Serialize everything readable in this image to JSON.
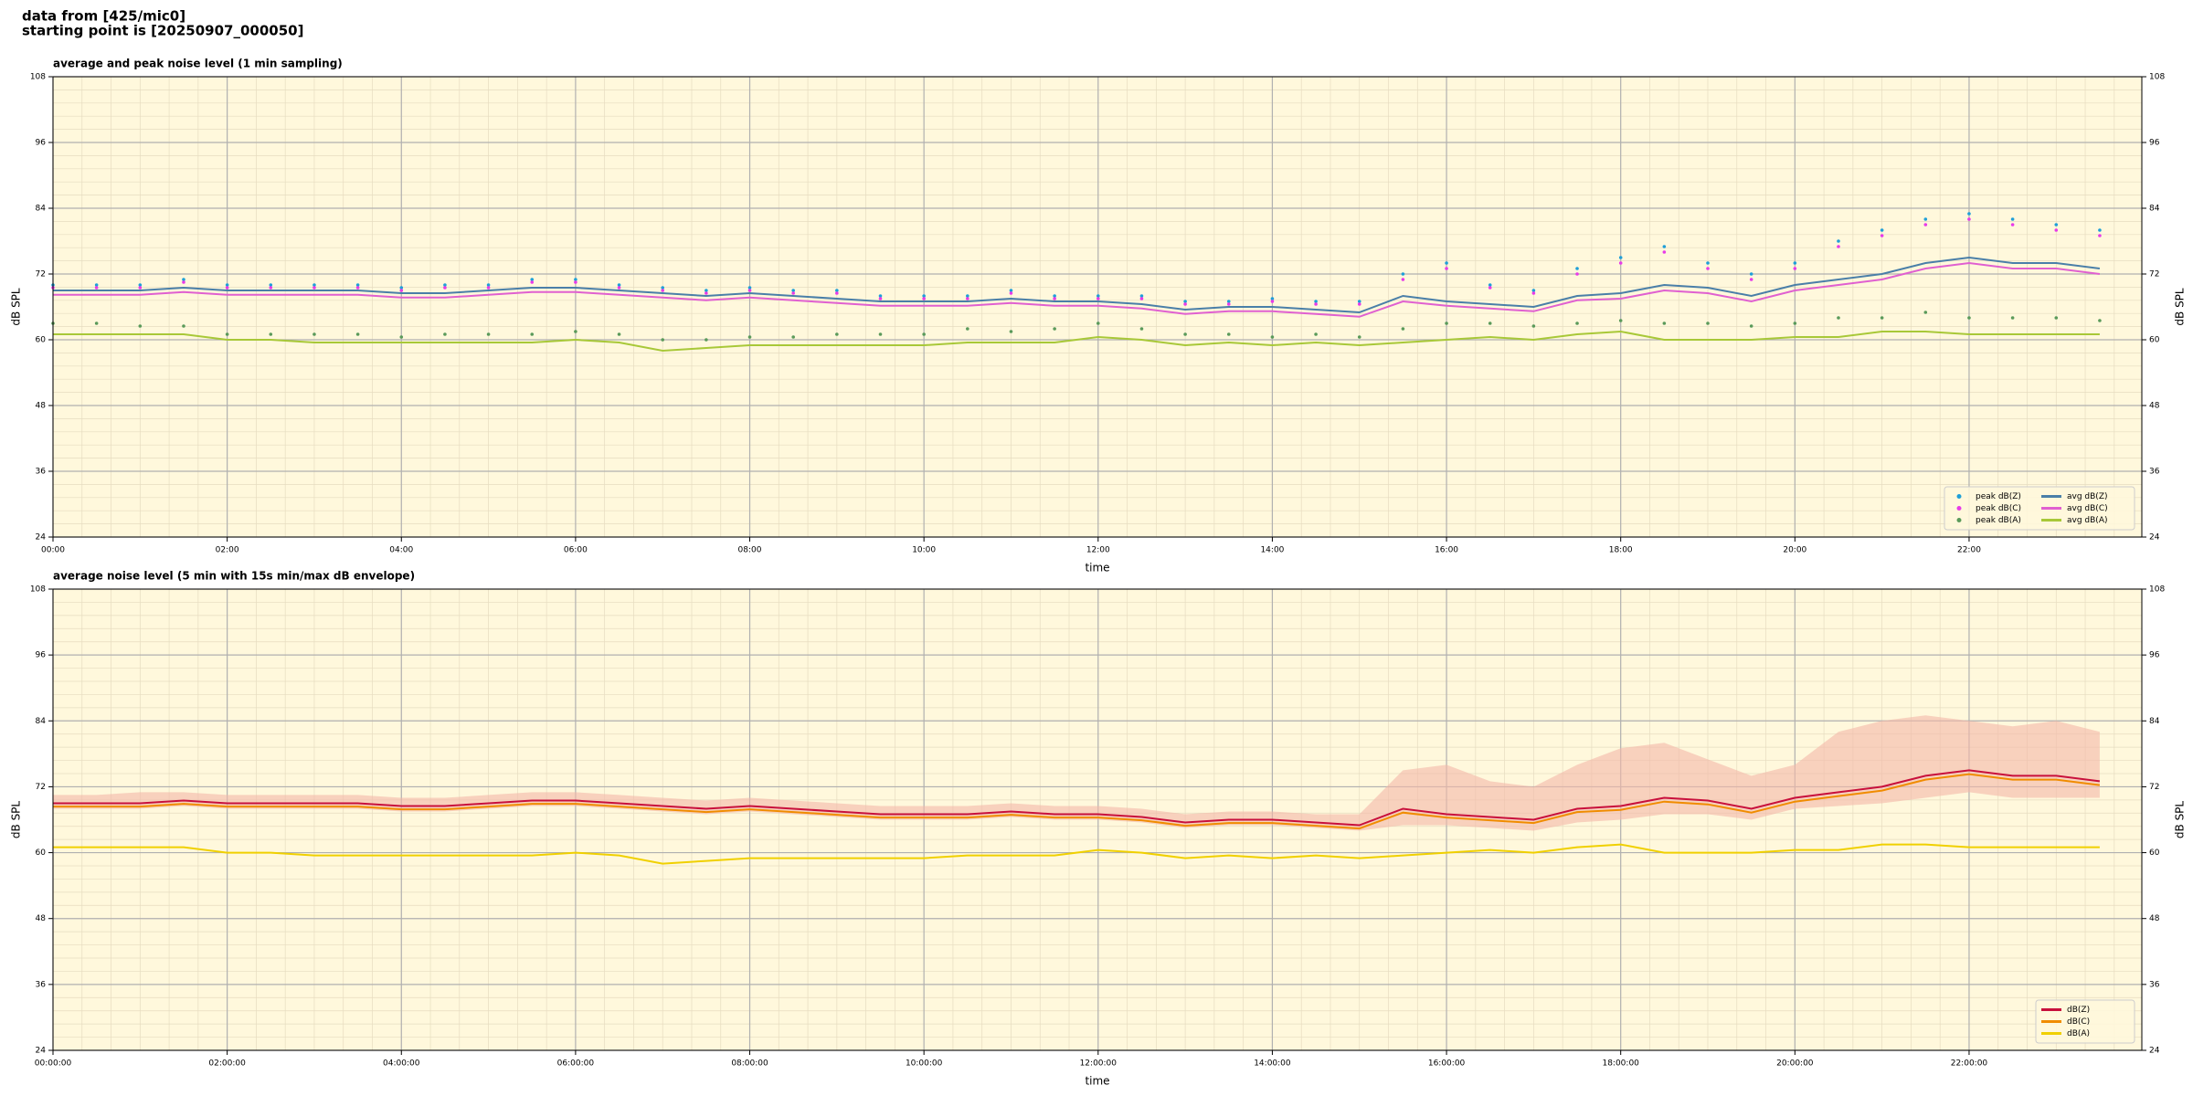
{
  "header": {
    "lines": [
      "data from [425/mic0]",
      "starting point is [20250907_000050]"
    ]
  },
  "chart_data": [
    {
      "type": "line",
      "title": "average and peak noise level (1 min sampling)",
      "xlabel": "time",
      "ylabel": "dB SPL",
      "background": "#fff8dc",
      "grid": true,
      "legend": "lower right",
      "x": [
        "00:00",
        "00:30",
        "01:00",
        "01:30",
        "02:00",
        "02:30",
        "03:00",
        "03:30",
        "04:00",
        "04:30",
        "05:00",
        "05:30",
        "06:00",
        "06:30",
        "07:00",
        "07:30",
        "08:00",
        "08:30",
        "09:00",
        "09:30",
        "10:00",
        "10:30",
        "11:00",
        "11:30",
        "12:00",
        "12:30",
        "13:00",
        "13:30",
        "14:00",
        "14:30",
        "15:00",
        "15:30",
        "16:00",
        "16:30",
        "17:00",
        "17:30",
        "18:00",
        "18:30",
        "19:00",
        "19:30",
        "20:00",
        "20:30",
        "21:00",
        "21:30",
        "22:00",
        "22:30",
        "23:00",
        "23:30"
      ],
      "xlim": [
        "00:00",
        "23:59"
      ],
      "xticks": [
        "00:00",
        "02:00",
        "04:00",
        "06:00",
        "08:00",
        "10:00",
        "12:00",
        "14:00",
        "16:00",
        "18:00",
        "20:00",
        "22:00"
      ],
      "ylim": [
        24,
        108
      ],
      "yticks": [
        24,
        36,
        48,
        60,
        72,
        84,
        96,
        108
      ],
      "series": [
        {
          "name": "peak dB(Z)",
          "type": "scatter",
          "color": "#1f9fd8",
          "values": [
            70,
            70,
            70,
            71,
            70,
            70,
            70,
            70,
            69.5,
            70,
            70,
            71,
            71,
            70,
            69.5,
            69,
            69.5,
            69,
            69,
            68,
            68,
            68,
            69,
            68,
            68,
            68,
            67,
            67,
            67.5,
            67,
            67,
            72,
            74,
            70,
            69,
            73,
            75,
            77,
            74,
            72,
            74,
            78,
            80,
            82,
            83,
            82,
            81,
            80
          ]
        },
        {
          "name": "peak dB(C)",
          "type": "scatter",
          "color": "#e83be8",
          "values": [
            69.5,
            69.5,
            69.5,
            70.5,
            69.5,
            69.5,
            69.5,
            69.5,
            69,
            69.5,
            69.5,
            70.5,
            70.5,
            69.5,
            69,
            68.5,
            69,
            68.5,
            68.5,
            67.5,
            67.5,
            67.5,
            68.5,
            67.5,
            67.5,
            67.5,
            66.5,
            66.5,
            67,
            66.5,
            66.5,
            71,
            73,
            69.5,
            68.5,
            72,
            74,
            76,
            73,
            71,
            73,
            77,
            79,
            81,
            82,
            81,
            80,
            79
          ]
        },
        {
          "name": "peak dB(A)",
          "type": "scatter",
          "color": "#5a9a5a",
          "values": [
            63,
            63,
            62.5,
            62.5,
            61,
            61,
            61,
            61,
            60.5,
            61,
            61,
            61,
            61.5,
            61,
            60,
            60,
            60.5,
            60.5,
            61,
            61,
            61,
            62,
            61.5,
            62,
            63,
            62,
            61,
            61,
            60.5,
            61,
            60.5,
            62,
            63,
            63,
            62.5,
            63,
            63.5,
            63,
            63,
            62.5,
            63,
            64,
            64,
            65,
            64,
            64,
            64,
            63.5
          ]
        },
        {
          "name": "avg dB(Z)",
          "type": "line",
          "color": "#4a7fa8",
          "values": [
            69,
            69,
            69,
            69.5,
            69,
            69,
            69,
            69,
            68.5,
            68.5,
            69,
            69.5,
            69.5,
            69,
            68.5,
            68,
            68.5,
            68,
            67.5,
            67,
            67,
            67,
            67.5,
            67,
            67,
            66.5,
            65.5,
            66,
            66,
            65.5,
            65,
            68,
            67,
            66.5,
            66,
            68,
            68.5,
            70,
            69.5,
            68,
            70,
            71,
            72,
            74,
            75,
            74,
            74,
            73
          ]
        },
        {
          "name": "avg dB(C)",
          "type": "line",
          "color": "#e060d0",
          "values": [
            68.2,
            68.2,
            68.2,
            68.7,
            68.2,
            68.2,
            68.2,
            68.2,
            67.7,
            67.7,
            68.2,
            68.7,
            68.7,
            68.2,
            67.7,
            67.2,
            67.7,
            67.2,
            66.7,
            66.2,
            66.2,
            66.2,
            66.7,
            66.2,
            66.2,
            65.7,
            64.7,
            65.2,
            65.2,
            64.7,
            64.2,
            67,
            66.2,
            65.7,
            65.2,
            67.2,
            67.5,
            69,
            68.5,
            67,
            69,
            70,
            71,
            73,
            74,
            73,
            73,
            72
          ]
        },
        {
          "name": "avg dB(A)",
          "type": "line",
          "color": "#a8c838",
          "values": [
            61,
            61,
            61,
            61,
            60,
            60,
            59.5,
            59.5,
            59.5,
            59.5,
            59.5,
            59.5,
            60,
            59.5,
            58,
            58.5,
            59,
            59,
            59,
            59,
            59,
            59.5,
            59.5,
            59.5,
            60.5,
            60,
            59,
            59.5,
            59,
            59.5,
            59,
            59.5,
            60,
            60.5,
            60,
            61,
            61.5,
            60,
            60,
            60,
            60.5,
            60.5,
            61.5,
            61.5,
            61,
            61,
            61,
            61
          ]
        }
      ]
    },
    {
      "type": "line",
      "title": "average noise level (5 min with 15s min/max dB envelope)",
      "xlabel": "time",
      "ylabel": "dB SPL",
      "background": "#fff8dc",
      "grid": true,
      "legend": "lower right",
      "x": [
        "00:00:00",
        "00:30:00",
        "01:00:00",
        "01:30:00",
        "02:00:00",
        "02:30:00",
        "03:00:00",
        "03:30:00",
        "04:00:00",
        "04:30:00",
        "05:00:00",
        "05:30:00",
        "06:00:00",
        "06:30:00",
        "07:00:00",
        "07:30:00",
        "08:00:00",
        "08:30:00",
        "09:00:00",
        "09:30:00",
        "10:00:00",
        "10:30:00",
        "11:00:00",
        "11:30:00",
        "12:00:00",
        "12:30:00",
        "13:00:00",
        "13:30:00",
        "14:00:00",
        "14:30:00",
        "15:00:00",
        "15:30:00",
        "16:00:00",
        "16:30:00",
        "17:00:00",
        "17:30:00",
        "18:00:00",
        "18:30:00",
        "19:00:00",
        "19:30:00",
        "20:00:00",
        "20:30:00",
        "21:00:00",
        "21:30:00",
        "22:00:00",
        "22:30:00",
        "23:00:00",
        "23:30:00"
      ],
      "xlim": [
        "00:00:00",
        "23:59:00"
      ],
      "xticks": [
        "00:00:00",
        "02:00:00",
        "04:00:00",
        "06:00:00",
        "08:00:00",
        "10:00:00",
        "12:00:00",
        "14:00:00",
        "16:00:00",
        "18:00:00",
        "20:00:00",
        "22:00:00"
      ],
      "ylim": [
        24,
        108
      ],
      "yticks": [
        24,
        36,
        48,
        60,
        72,
        84,
        96,
        108
      ],
      "envelope": {
        "color": "#f4b8a8",
        "upper": [
          70.5,
          70.5,
          71,
          71,
          70.5,
          70.5,
          70.5,
          70.5,
          70,
          70,
          70.5,
          71,
          71,
          70.5,
          70,
          69.5,
          70,
          69.5,
          69,
          68.5,
          68.5,
          68.5,
          69,
          68.5,
          68.5,
          68,
          67,
          67.5,
          67.5,
          67,
          67,
          75,
          76,
          73,
          72,
          76,
          79,
          80,
          77,
          74,
          76,
          82,
          84,
          85,
          84,
          83,
          84,
          82
        ],
        "lower": [
          68,
          68,
          68,
          68.5,
          68,
          68,
          68,
          68,
          67.5,
          67.5,
          68,
          68.5,
          68.5,
          68,
          67.5,
          67,
          67.5,
          67,
          66.5,
          66,
          66,
          66,
          66.5,
          66,
          66,
          65.5,
          64.5,
          65,
          65,
          64.5,
          64,
          65,
          65,
          64.5,
          64,
          65.5,
          66,
          67,
          67,
          66,
          68,
          68.5,
          69,
          70,
          71,
          70,
          70,
          70
        ]
      },
      "series": [
        {
          "name": "dB(Z)",
          "type": "line",
          "color": "#c8103c",
          "values": [
            69,
            69,
            69,
            69.5,
            69,
            69,
            69,
            69,
            68.5,
            68.5,
            69,
            69.5,
            69.5,
            69,
            68.5,
            68,
            68.5,
            68,
            67.5,
            67,
            67,
            67,
            67.5,
            67,
            67,
            66.5,
            65.5,
            66,
            66,
            65.5,
            65,
            68,
            67,
            66.5,
            66,
            68,
            68.5,
            70,
            69.5,
            68,
            70,
            71,
            72,
            74,
            75,
            74,
            74,
            73
          ]
        },
        {
          "name": "dB(C)",
          "type": "line",
          "color": "#f08c00",
          "values": [
            68.4,
            68.4,
            68.4,
            68.9,
            68.4,
            68.4,
            68.4,
            68.4,
            67.9,
            67.9,
            68.4,
            68.9,
            68.9,
            68.4,
            67.9,
            67.4,
            67.9,
            67.4,
            66.9,
            66.4,
            66.4,
            66.4,
            66.9,
            66.4,
            66.4,
            65.9,
            64.9,
            65.4,
            65.4,
            64.9,
            64.4,
            67.3,
            66.4,
            65.9,
            65.4,
            67.4,
            67.8,
            69.3,
            68.8,
            67.3,
            69.3,
            70.3,
            71.3,
            73.3,
            74.3,
            73.3,
            73.3,
            72.3
          ]
        },
        {
          "name": "dB(A)",
          "type": "line",
          "color": "#f0d000",
          "values": [
            61,
            61,
            61,
            61,
            60,
            60,
            59.5,
            59.5,
            59.5,
            59.5,
            59.5,
            59.5,
            60,
            59.5,
            58,
            58.5,
            59,
            59,
            59,
            59,
            59,
            59.5,
            59.5,
            59.5,
            60.5,
            60,
            59,
            59.5,
            59,
            59.5,
            59,
            59.5,
            60,
            60.5,
            60,
            61,
            61.5,
            60,
            60,
            60,
            60.5,
            60.5,
            61.5,
            61.5,
            61,
            61,
            61,
            61
          ]
        }
      ]
    }
  ]
}
